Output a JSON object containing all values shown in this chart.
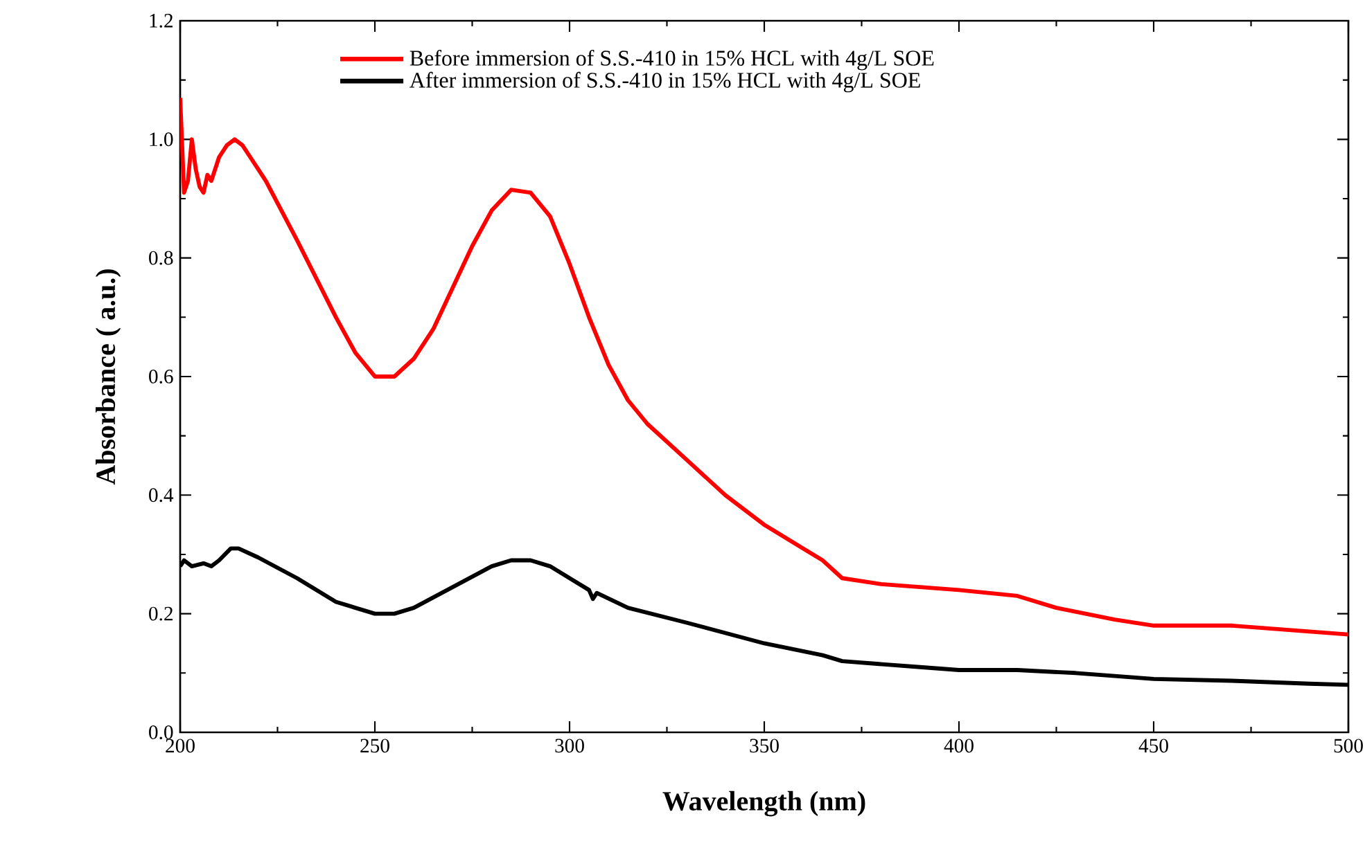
{
  "chart_data": {
    "type": "line",
    "xlabel": "Wavelength (nm)",
    "ylabel": "Absorbance ( a.u.)",
    "xlim": [
      200,
      500
    ],
    "ylim": [
      0,
      1.2
    ],
    "xticks": [
      200,
      250,
      300,
      350,
      400,
      450,
      500
    ],
    "yticks": [
      {
        "value": 0,
        "label": "0.0"
      },
      0.2,
      0.4,
      0.6,
      0.8,
      {
        "value": 1.0,
        "label": "1.0"
      },
      1.2
    ],
    "legend": "top",
    "series": [
      {
        "name": "Before immersion of S.S.-410 in 15% HCL with 4g/L SOE",
        "color": "#ff0000",
        "x": [
          200,
          201,
          202,
          203,
          204,
          205,
          206,
          207,
          208,
          210,
          212,
          214,
          216,
          218,
          222,
          230,
          240,
          245,
          250,
          255,
          260,
          265,
          270,
          275,
          280,
          285,
          290,
          295,
          300,
          305,
          310,
          315,
          320,
          330,
          340,
          350,
          360,
          365,
          370,
          380,
          400,
          415,
          425,
          440,
          450,
          470,
          490,
          500
        ],
        "values": [
          1.07,
          0.91,
          0.93,
          1.0,
          0.95,
          0.92,
          0.91,
          0.94,
          0.93,
          0.97,
          0.99,
          1.0,
          0.99,
          0.97,
          0.93,
          0.83,
          0.7,
          0.64,
          0.6,
          0.6,
          0.63,
          0.68,
          0.75,
          0.82,
          0.88,
          0.915,
          0.91,
          0.87,
          0.79,
          0.7,
          0.62,
          0.56,
          0.52,
          0.46,
          0.4,
          0.35,
          0.31,
          0.29,
          0.26,
          0.25,
          0.24,
          0.23,
          0.21,
          0.19,
          0.18,
          0.18,
          0.17,
          0.165
        ]
      },
      {
        "name": "After immersion of S.S.-410 in 15% HCL with 4g/L SOE",
        "color": "#000000",
        "x": [
          200,
          201,
          203,
          206,
          208,
          210,
          213,
          215,
          220,
          230,
          240,
          250,
          255,
          260,
          270,
          280,
          285,
          290,
          295,
          300,
          305,
          306,
          307,
          315,
          330,
          350,
          365,
          370,
          390,
          400,
          415,
          430,
          450,
          470,
          490,
          500
        ],
        "values": [
          0.28,
          0.29,
          0.28,
          0.285,
          0.28,
          0.29,
          0.31,
          0.31,
          0.295,
          0.26,
          0.22,
          0.2,
          0.2,
          0.21,
          0.245,
          0.28,
          0.29,
          0.29,
          0.28,
          0.26,
          0.24,
          0.225,
          0.235,
          0.21,
          0.185,
          0.15,
          0.13,
          0.12,
          0.11,
          0.105,
          0.105,
          0.1,
          0.09,
          0.087,
          0.082,
          0.08
        ]
      }
    ]
  }
}
